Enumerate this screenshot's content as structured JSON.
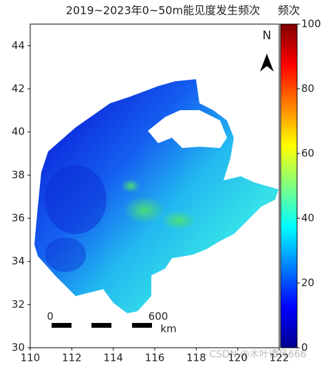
{
  "map": {
    "title": "2019~2023年0~50m能见度发生频次",
    "xlim": [
      110,
      122
    ],
    "xticks": [
      110,
      112,
      114,
      116,
      118,
      120,
      122
    ],
    "ylim": [
      30,
      45
    ],
    "yticks": [
      30,
      32,
      34,
      36,
      38,
      40,
      42,
      44
    ],
    "colorbar": {
      "label": "频次",
      "lim": [
        0,
        100
      ],
      "ticks": [
        0,
        20,
        40,
        60,
        80,
        100
      ]
    },
    "north": "N",
    "scale_bar": {
      "start": "0",
      "end": "600",
      "unit": "km"
    },
    "watermark": "CSDN @木叶谭风666"
  }
}
